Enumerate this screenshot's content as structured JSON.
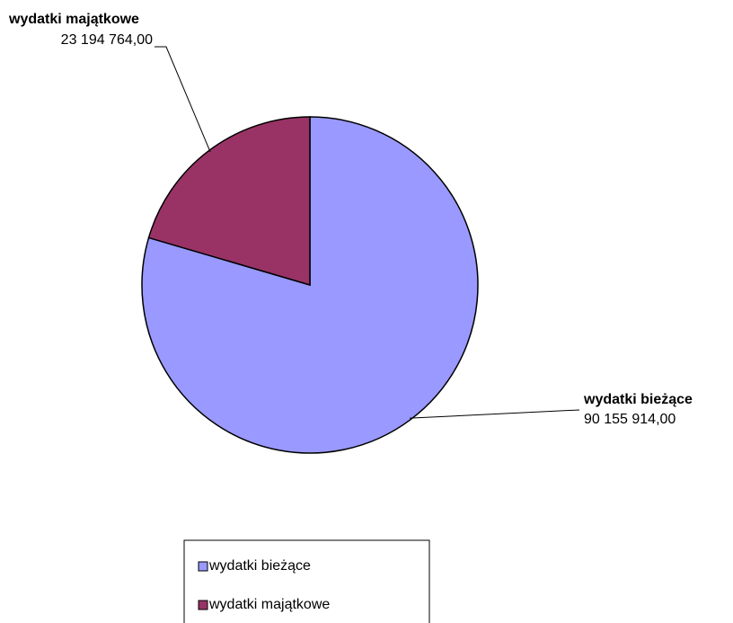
{
  "chart_data": {
    "type": "pie",
    "categories": [
      "wydatki bieżące",
      "wydatki majątkowe"
    ],
    "values": [
      90155914.0,
      23194764.0
    ],
    "value_labels": [
      "90 155 914,00",
      "23 194 764,00"
    ],
    "colors": [
      "#9999ff",
      "#993366"
    ],
    "legend": "bottom"
  }
}
